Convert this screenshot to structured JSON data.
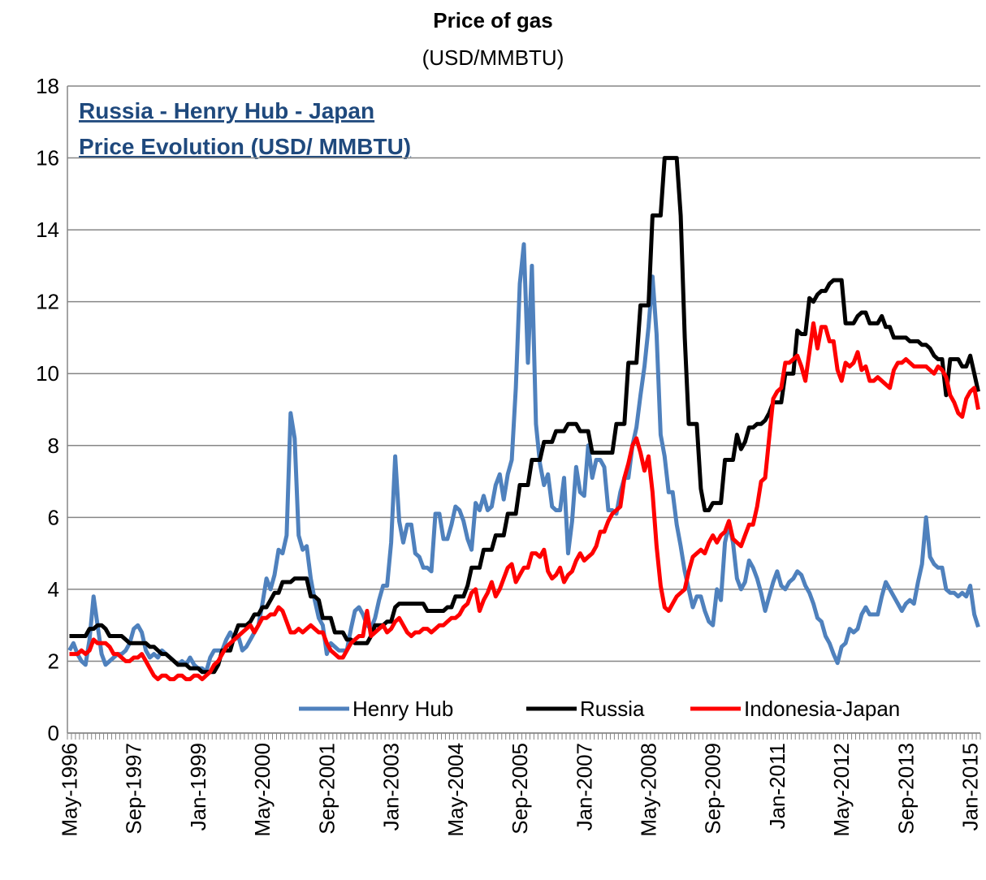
{
  "chart_data": {
    "type": "line",
    "title": "Price of gas",
    "subtitle": "(USD/MMBTU)",
    "annotation": [
      "Russia - Henry Hub - Japan ",
      "Price Evolution (USD/ MMBTU)"
    ],
    "categories": [
      "May-1996",
      null,
      null,
      null,
      null,
      null,
      null,
      null,
      null,
      null,
      null,
      null,
      null,
      null,
      null,
      null,
      "Sep-1997",
      null,
      null,
      null,
      null,
      null,
      null,
      null,
      null,
      null,
      null,
      null,
      null,
      null,
      null,
      null,
      "Jan-1999",
      null,
      null,
      null,
      null,
      null,
      null,
      null,
      null,
      null,
      null,
      null,
      null,
      null,
      null,
      null,
      "May-2000",
      null,
      null,
      null,
      null,
      null,
      null,
      null,
      null,
      null,
      null,
      null,
      null,
      null,
      null,
      null,
      "Sep-2001",
      null,
      null,
      null,
      null,
      null,
      null,
      null,
      null,
      null,
      null,
      null,
      null,
      null,
      null,
      null,
      "Jan-2003",
      null,
      null,
      null,
      null,
      null,
      null,
      null,
      null,
      null,
      null,
      null,
      null,
      null,
      null,
      null,
      "May-2004",
      null,
      null,
      null,
      null,
      null,
      null,
      null,
      null,
      null,
      null,
      null,
      null,
      null,
      null,
      null,
      "Sep-2005",
      null,
      null,
      null,
      null,
      null,
      null,
      null,
      null,
      null,
      null,
      null,
      null,
      null,
      null,
      null,
      "Jan-2007",
      null,
      null,
      null,
      null,
      null,
      null,
      null,
      null,
      null,
      null,
      null,
      null,
      null,
      null,
      null,
      "May-2008",
      null,
      null,
      null,
      null,
      null,
      null,
      null,
      null,
      null,
      null,
      null,
      null,
      null,
      null,
      null,
      "Sep-2009",
      null,
      null,
      null,
      null,
      null,
      null,
      null,
      null,
      null,
      null,
      null,
      null,
      null,
      null,
      null,
      "Jan-2011",
      null,
      null,
      null,
      null,
      null,
      null,
      null,
      null,
      null,
      null,
      null,
      null,
      null,
      null,
      null,
      "May-2012",
      null,
      null,
      null,
      null,
      null,
      null,
      null,
      null,
      null,
      null,
      null,
      null,
      null,
      null,
      null,
      "Sep-2013",
      null,
      null,
      null,
      null,
      null,
      null,
      null,
      null,
      null,
      null,
      null,
      null,
      null,
      null,
      null,
      "Jan-2015",
      null,
      null
    ],
    "series": [
      {
        "name": "Henry Hub",
        "color": "#4f81bd",
        "values": [
          2.3,
          2.5,
          2.2,
          2.0,
          1.9,
          2.6,
          3.8,
          3.0,
          2.2,
          1.9,
          2.0,
          2.1,
          2.2,
          2.2,
          2.3,
          2.5,
          2.9,
          3.0,
          2.8,
          2.3,
          2.1,
          2.2,
          2.1,
          2.3,
          2.2,
          2.1,
          2.0,
          1.9,
          2.0,
          1.9,
          2.1,
          1.9,
          1.8,
          1.8,
          1.7,
          2.1,
          2.3,
          2.3,
          2.3,
          2.6,
          2.8,
          2.6,
          2.7,
          2.3,
          2.4,
          2.6,
          2.8,
          3.0,
          3.6,
          4.3,
          4.0,
          4.4,
          5.1,
          5.0,
          5.5,
          8.9,
          8.2,
          5.5,
          5.1,
          5.2,
          4.3,
          3.7,
          3.2,
          3.0,
          2.2,
          2.5,
          2.4,
          2.3,
          2.3,
          2.3,
          2.9,
          3.4,
          3.5,
          3.3,
          3.0,
          2.9,
          3.2,
          3.7,
          4.1,
          4.1,
          5.3,
          7.7,
          5.9,
          5.3,
          5.8,
          5.8,
          5.0,
          4.9,
          4.6,
          4.6,
          4.5,
          6.1,
          6.1,
          5.4,
          5.4,
          5.8,
          6.3,
          6.2,
          5.9,
          5.4,
          5.1,
          6.4,
          6.2,
          6.6,
          6.2,
          6.3,
          6.9,
          7.2,
          6.5,
          7.2,
          7.6,
          9.6,
          12.5,
          13.6,
          10.3,
          13.0,
          8.6,
          7.5,
          6.9,
          7.2,
          6.3,
          6.2,
          6.2,
          7.1,
          5.0,
          5.9,
          7.4,
          6.7,
          6.6,
          8.0,
          7.1,
          7.6,
          7.6,
          7.4,
          6.2,
          6.2,
          6.1,
          6.7,
          7.1,
          7.1,
          8.0,
          8.5,
          9.4,
          10.2,
          11.3,
          12.7,
          11.1,
          8.3,
          7.7,
          6.7,
          6.7,
          5.8,
          5.2,
          4.5,
          4.0,
          3.5,
          3.8,
          3.8,
          3.4,
          3.1,
          3.0,
          4.0,
          3.7,
          5.3,
          5.8,
          5.3,
          4.3,
          4.0,
          4.2,
          4.8,
          4.6,
          4.3,
          3.9,
          3.4,
          3.8,
          4.2,
          4.5,
          4.1,
          4.0,
          4.2,
          4.3,
          4.5,
          4.4,
          4.1,
          3.9,
          3.6,
          3.2,
          3.1,
          2.7,
          2.5,
          2.2,
          1.95,
          2.4,
          2.5,
          2.9,
          2.8,
          2.9,
          3.3,
          3.5,
          3.3,
          3.3,
          3.3,
          3.8,
          4.2,
          4.0,
          3.8,
          3.6,
          3.4,
          3.6,
          3.7,
          3.6,
          4.2,
          4.7,
          6.0,
          4.9,
          4.7,
          4.6,
          4.6,
          4.0,
          3.9,
          3.9,
          3.8,
          3.9,
          3.8,
          4.1,
          3.3,
          2.95
        ]
      },
      {
        "name": "Russia",
        "color": "#000000",
        "values": [
          2.7,
          2.7,
          2.7,
          2.7,
          2.7,
          2.9,
          2.9,
          3.0,
          3.0,
          2.9,
          2.7,
          2.7,
          2.7,
          2.7,
          2.6,
          2.5,
          2.5,
          2.5,
          2.5,
          2.5,
          2.4,
          2.4,
          2.3,
          2.2,
          2.2,
          2.1,
          2.0,
          1.9,
          1.9,
          1.9,
          1.8,
          1.8,
          1.8,
          1.7,
          1.7,
          1.7,
          1.7,
          1.9,
          2.3,
          2.3,
          2.3,
          2.7,
          3.0,
          3.0,
          3.0,
          3.1,
          3.3,
          3.3,
          3.5,
          3.5,
          3.7,
          3.9,
          3.9,
          4.2,
          4.2,
          4.2,
          4.3,
          4.3,
          4.3,
          4.3,
          3.8,
          3.8,
          3.7,
          3.2,
          3.2,
          3.2,
          2.8,
          2.8,
          2.8,
          2.6,
          2.6,
          2.5,
          2.5,
          2.5,
          2.5,
          2.7,
          3.0,
          3.0,
          3.0,
          3.1,
          3.1,
          3.5,
          3.6,
          3.6,
          3.6,
          3.6,
          3.6,
          3.6,
          3.6,
          3.4,
          3.4,
          3.4,
          3.4,
          3.4,
          3.5,
          3.5,
          3.8,
          3.8,
          3.8,
          4.1,
          4.6,
          4.6,
          4.6,
          5.1,
          5.1,
          5.1,
          5.5,
          5.5,
          5.5,
          6.1,
          6.1,
          6.1,
          6.9,
          6.9,
          6.9,
          7.6,
          7.6,
          7.6,
          8.1,
          8.1,
          8.1,
          8.4,
          8.4,
          8.4,
          8.6,
          8.6,
          8.6,
          8.4,
          8.4,
          8.4,
          7.8,
          7.8,
          7.8,
          7.8,
          7.8,
          7.8,
          8.6,
          8.6,
          8.6,
          10.3,
          10.3,
          10.3,
          11.9,
          11.9,
          11.9,
          14.4,
          14.4,
          14.4,
          16.0,
          16.0,
          16.0,
          16.0,
          14.4,
          11.0,
          8.6,
          8.6,
          8.6,
          6.8,
          6.2,
          6.2,
          6.4,
          6.4,
          6.4,
          7.6,
          7.6,
          7.6,
          8.3,
          7.9,
          8.1,
          8.5,
          8.5,
          8.6,
          8.6,
          8.7,
          8.9,
          9.2,
          9.2,
          9.2,
          10.0,
          10.0,
          10.0,
          11.2,
          11.1,
          11.1,
          12.1,
          12.0,
          12.2,
          12.3,
          12.3,
          12.5,
          12.6,
          12.6,
          12.6,
          11.4,
          11.4,
          11.4,
          11.6,
          11.7,
          11.7,
          11.4,
          11.4,
          11.4,
          11.6,
          11.3,
          11.3,
          11.0,
          11.0,
          11.0,
          11.0,
          10.9,
          10.9,
          10.9,
          10.8,
          10.8,
          10.7,
          10.5,
          10.4,
          10.4,
          9.4,
          10.4,
          10.4,
          10.4,
          10.2,
          10.2,
          10.5,
          10.0,
          9.5
        ]
      },
      {
        "name": "Indonesia-Japan",
        "color": "#ff0000",
        "values": [
          2.2,
          2.2,
          2.2,
          2.3,
          2.2,
          2.3,
          2.6,
          2.5,
          2.5,
          2.5,
          2.4,
          2.2,
          2.2,
          2.1,
          2.0,
          2.0,
          2.1,
          2.1,
          2.2,
          2.0,
          1.8,
          1.6,
          1.5,
          1.6,
          1.6,
          1.5,
          1.5,
          1.6,
          1.6,
          1.5,
          1.5,
          1.6,
          1.6,
          1.5,
          1.6,
          1.7,
          1.9,
          2.0,
          2.2,
          2.4,
          2.5,
          2.6,
          2.7,
          2.8,
          2.9,
          3.0,
          2.8,
          3.0,
          3.2,
          3.2,
          3.3,
          3.3,
          3.5,
          3.4,
          3.1,
          2.8,
          2.8,
          2.9,
          2.8,
          2.9,
          3.0,
          2.9,
          2.8,
          2.8,
          2.5,
          2.3,
          2.2,
          2.1,
          2.1,
          2.3,
          2.5,
          2.6,
          2.7,
          2.7,
          3.4,
          2.7,
          2.8,
          2.9,
          3.0,
          2.8,
          2.9,
          3.1,
          3.2,
          3.0,
          2.8,
          2.7,
          2.8,
          2.8,
          2.9,
          2.9,
          2.8,
          2.9,
          3.0,
          3.0,
          3.1,
          3.2,
          3.2,
          3.3,
          3.5,
          3.6,
          3.9,
          4.0,
          3.4,
          3.7,
          3.9,
          4.2,
          3.8,
          4.0,
          4.3,
          4.6,
          4.7,
          4.2,
          4.4,
          4.6,
          4.6,
          5.0,
          5.0,
          4.9,
          5.1,
          4.5,
          4.3,
          4.4,
          4.6,
          4.2,
          4.4,
          4.5,
          4.8,
          5.0,
          4.8,
          4.9,
          5.0,
          5.2,
          5.6,
          5.6,
          5.9,
          6.1,
          6.2,
          6.3,
          7.1,
          7.5,
          8.0,
          8.2,
          7.8,
          7.3,
          7.7,
          6.7,
          5.2,
          4.1,
          3.5,
          3.4,
          3.6,
          3.8,
          3.9,
          4.0,
          4.5,
          4.9,
          5.0,
          5.1,
          5.0,
          5.3,
          5.5,
          5.3,
          5.5,
          5.6,
          5.9,
          5.4,
          5.3,
          5.2,
          5.5,
          5.8,
          5.8,
          6.3,
          7.0,
          7.1,
          8.2,
          9.3,
          9.5,
          9.6,
          10.3,
          10.3,
          10.4,
          10.5,
          10.2,
          9.8,
          10.6,
          11.4,
          10.7,
          11.3,
          11.3,
          10.9,
          10.9,
          10.1,
          9.8,
          10.3,
          10.2,
          10.3,
          10.6,
          10.1,
          10.2,
          9.8,
          9.8,
          9.9,
          9.8,
          9.7,
          9.6,
          10.1,
          10.3,
          10.3,
          10.4,
          10.3,
          10.2,
          10.2,
          10.2,
          10.2,
          10.1,
          10.0,
          10.2,
          10.1,
          9.9,
          9.4,
          9.2,
          8.9,
          8.8,
          9.3,
          9.5,
          9.6,
          9.0
        ]
      }
    ],
    "ylim": [
      0,
      18
    ],
    "yticks": [
      0,
      2,
      4,
      6,
      8,
      10,
      12,
      14,
      16,
      18
    ],
    "grid": true,
    "legend": "lower right"
  }
}
